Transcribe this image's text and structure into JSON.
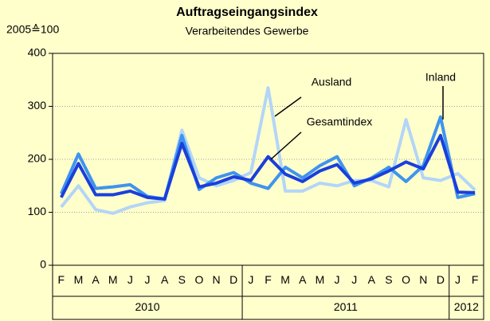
{
  "chart_data": {
    "type": "line",
    "title": "Auftragseingangsindex",
    "subtitle": "Verarbeitendes Gewerbe",
    "ylabel": "2005≙100",
    "groups": [
      {
        "name": "2010",
        "categories": [
          "F",
          "M",
          "A",
          "M",
          "J",
          "J",
          "A",
          "S",
          "O",
          "N",
          "D"
        ]
      },
      {
        "name": "2011",
        "categories": [
          "J",
          "F",
          "M",
          "A",
          "M",
          "J",
          "J",
          "A",
          "S",
          "O",
          "N",
          "D"
        ]
      },
      {
        "name": "2012",
        "categories": [
          "J",
          "F"
        ]
      }
    ],
    "series": [
      {
        "name": "Inland",
        "color": "#1a3fdc",
        "values": [
          128,
          192,
          133,
          133,
          140,
          128,
          125,
          230,
          148,
          155,
          167,
          160,
          205,
          172,
          158,
          178,
          190,
          155,
          163,
          178,
          195,
          182,
          245,
          138,
          137
        ]
      },
      {
        "name": "Gesamtindex",
        "color": "#3f94ee",
        "values": [
          135,
          210,
          145,
          148,
          152,
          130,
          125,
          245,
          143,
          165,
          175,
          155,
          145,
          185,
          165,
          188,
          205,
          150,
          165,
          185,
          158,
          188,
          280,
          128,
          135
        ]
      },
      {
        "name": "Ausland",
        "color": "#b3d5f8",
        "values": [
          110,
          150,
          105,
          98,
          110,
          118,
          122,
          255,
          165,
          150,
          160,
          175,
          335,
          140,
          140,
          155,
          150,
          160,
          160,
          148,
          275,
          165,
          160,
          173,
          142
        ]
      }
    ],
    "ylim": [
      0,
      400
    ],
    "yticks": [
      0,
      100,
      200,
      300,
      400
    ],
    "grid": true
  }
}
